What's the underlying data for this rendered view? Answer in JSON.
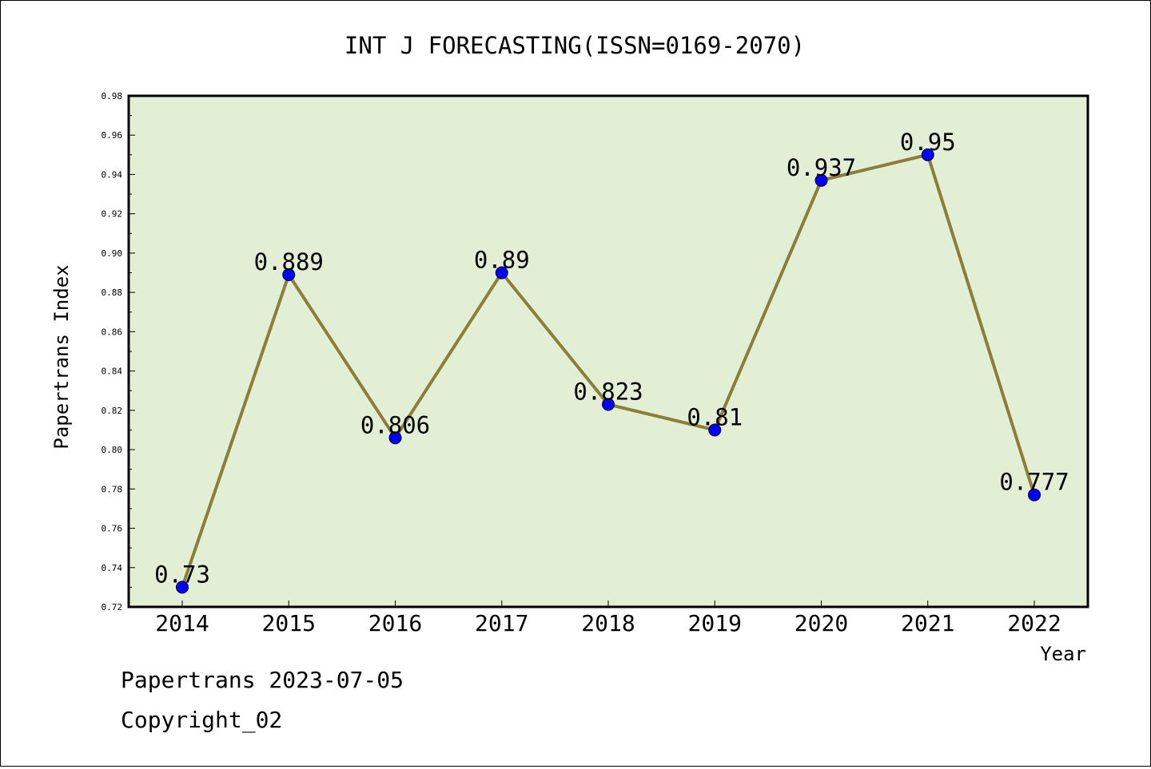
{
  "chart_data": {
    "type": "line",
    "title": "INT J FORECASTING(ISSN=0169-2070)",
    "xlabel": "Year",
    "ylabel": "Papertrans Index",
    "categories": [
      "2014",
      "2015",
      "2016",
      "2017",
      "2018",
      "2019",
      "2020",
      "2021",
      "2022"
    ],
    "series": [
      {
        "values": [
          0.73,
          0.889,
          0.806,
          0.89,
          0.823,
          0.81,
          0.937,
          0.95,
          0.777
        ],
        "data_labels": [
          "0.73",
          "0.889",
          "0.806",
          "0.89",
          "0.823",
          "0.81",
          "0.937",
          "0.95",
          "0.777"
        ]
      }
    ],
    "ylim": [
      0.72,
      0.98
    ],
    "yticks": [
      0.72,
      0.74,
      0.76,
      0.78,
      0.8,
      0.82,
      0.84,
      0.86,
      0.88,
      0.9,
      0.92,
      0.94,
      0.96,
      0.98
    ],
    "ytick_labels": [
      "0.72",
      "0.74",
      "0.76",
      "0.78",
      "0.80",
      "0.82",
      "0.84",
      "0.86",
      "0.88",
      "0.90",
      "0.92",
      "0.94",
      "0.96",
      "0.98"
    ],
    "grid": false,
    "legend": "none",
    "colors": {
      "plot_background": "#e2efd5",
      "line": "#8b7e36",
      "marker": "#0000ff"
    }
  },
  "footer": {
    "line1": "Papertrans 2023-07-05",
    "line2": "Copyright_02"
  }
}
